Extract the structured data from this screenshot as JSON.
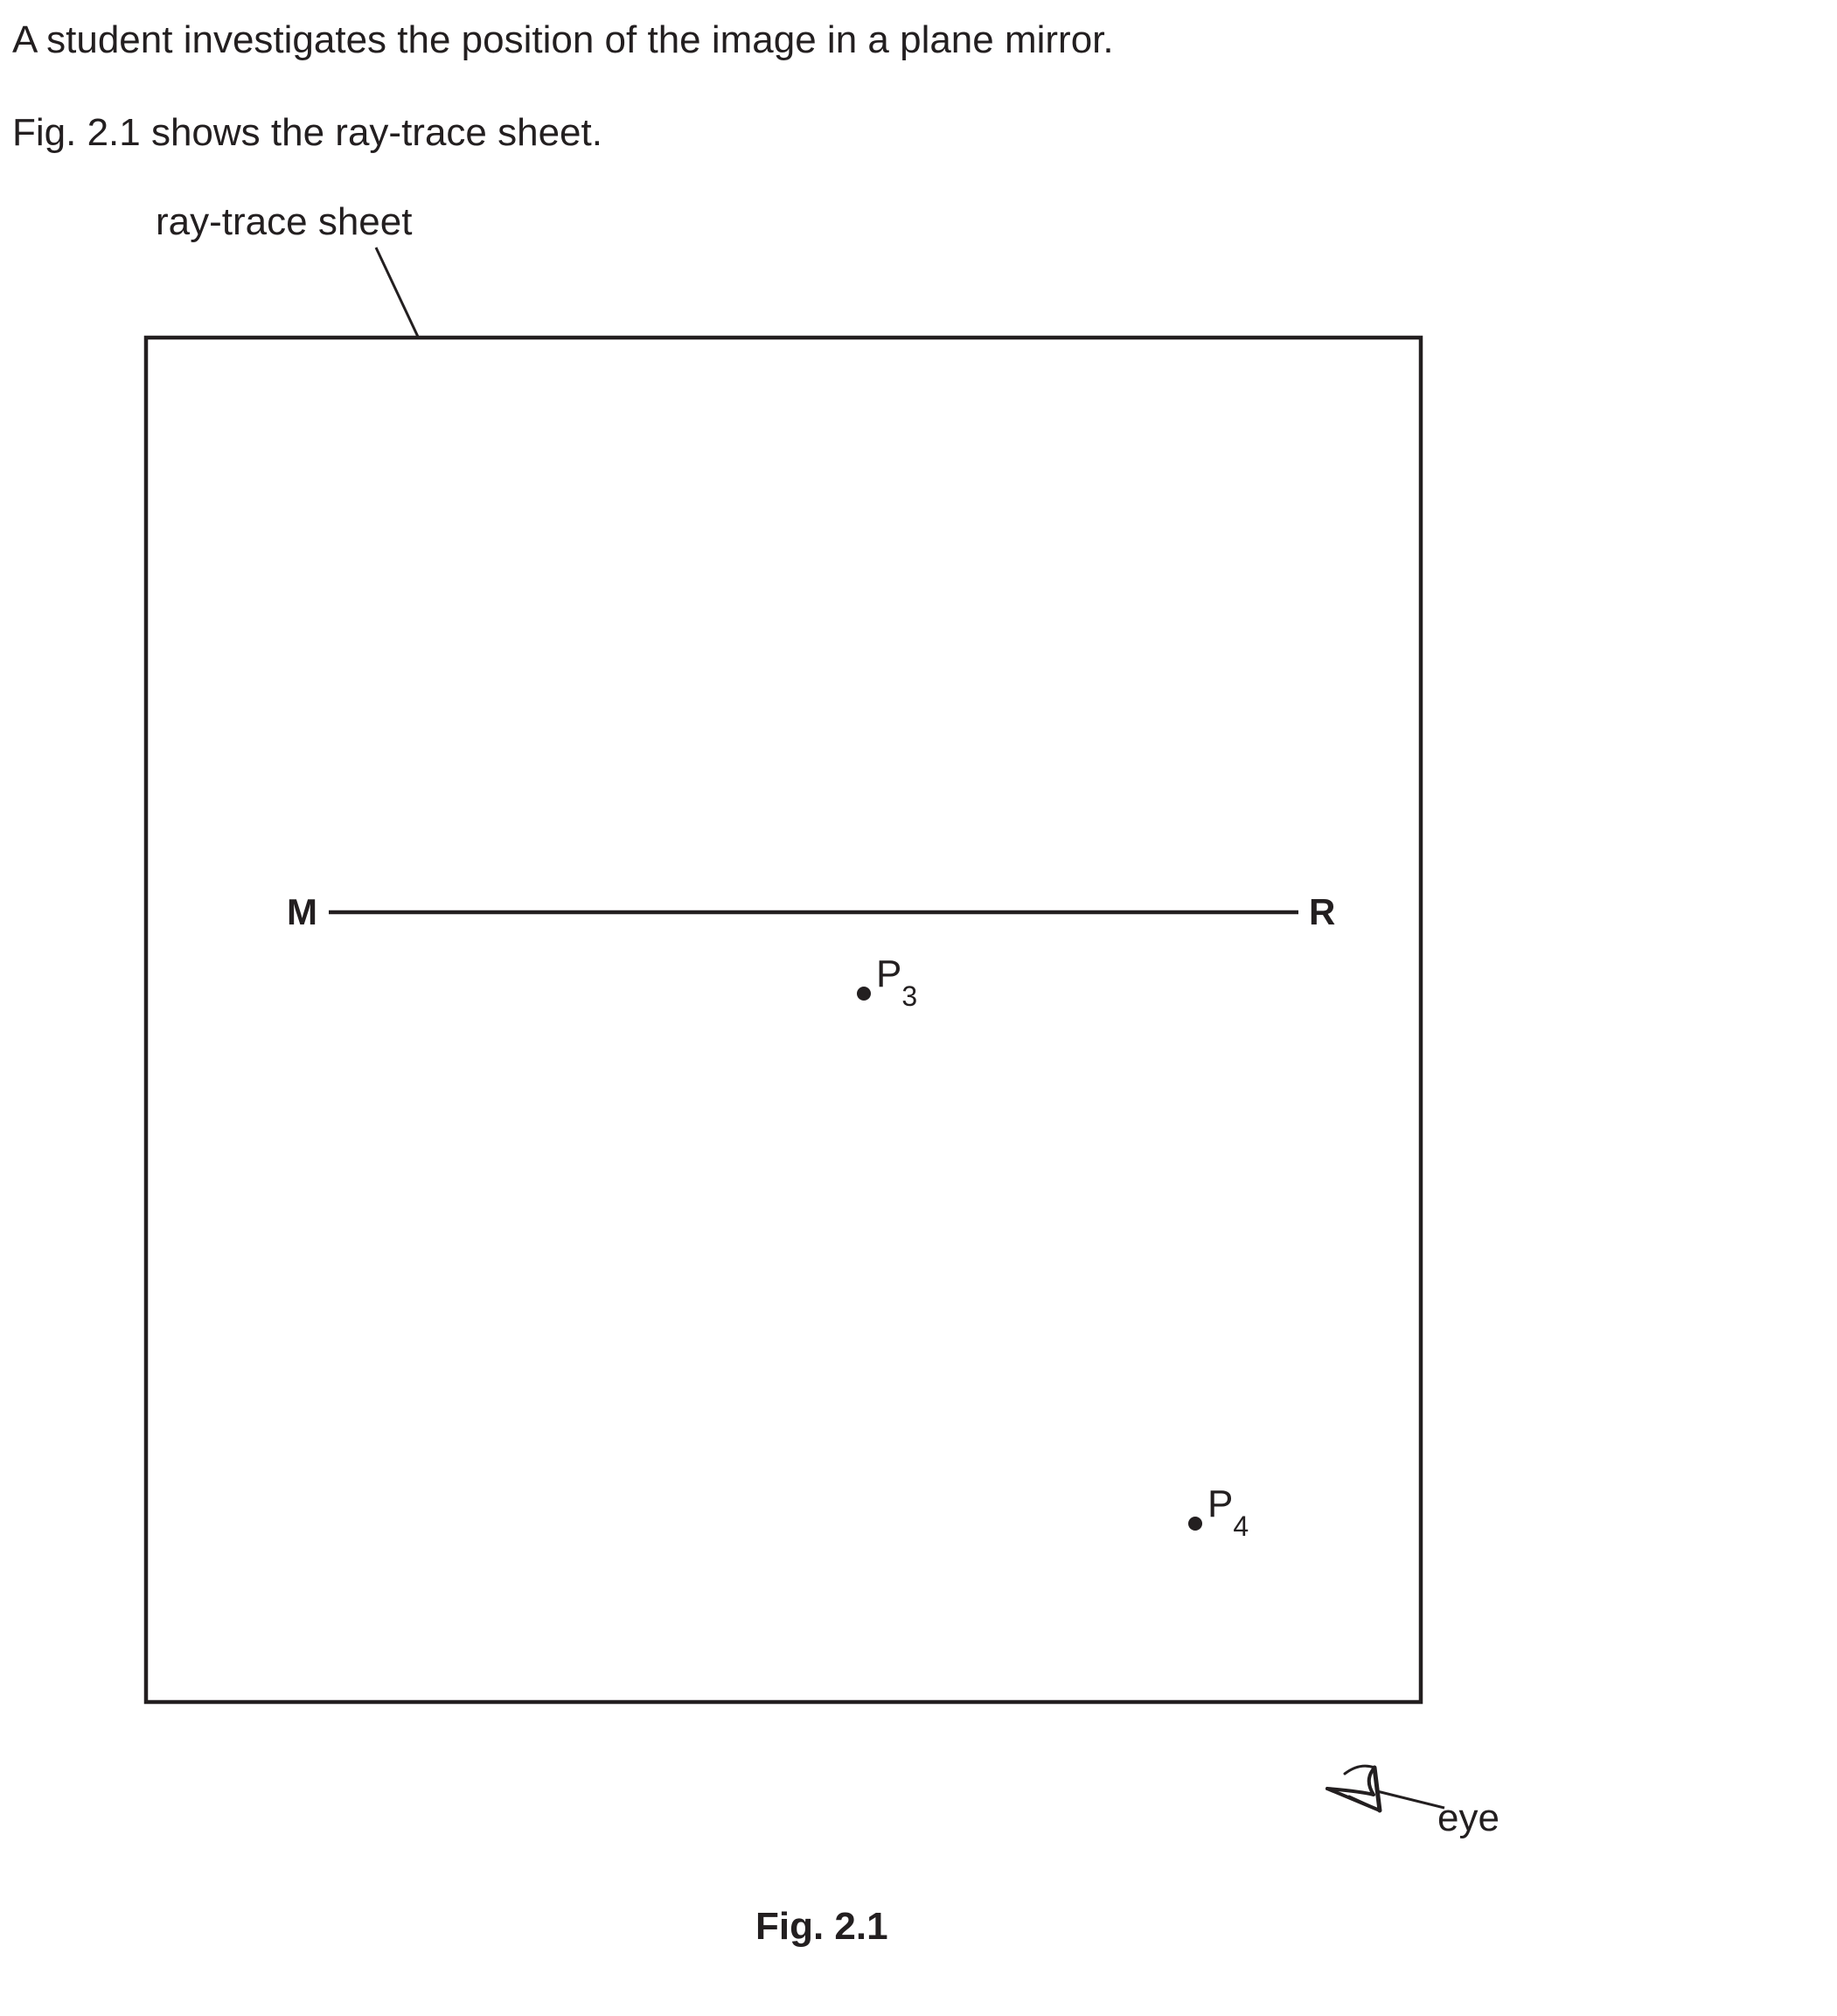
{
  "intro": {
    "sentence_1": "A student investigates the position of the image in a plane mirror.",
    "sentence_2": "Fig. 2.1 shows the ray-trace sheet."
  },
  "figure": {
    "sheet_label": "ray-trace sheet",
    "mirror_left_label": "M",
    "mirror_right_label": "R",
    "pins": [
      {
        "letter": "P",
        "subscript": "3"
      },
      {
        "letter": "P",
        "subscript": "4"
      }
    ],
    "eye_label": "eye",
    "caption": "Fig. 2.1"
  },
  "colors": {
    "ink": "#231f20",
    "background": "#ffffff"
  }
}
